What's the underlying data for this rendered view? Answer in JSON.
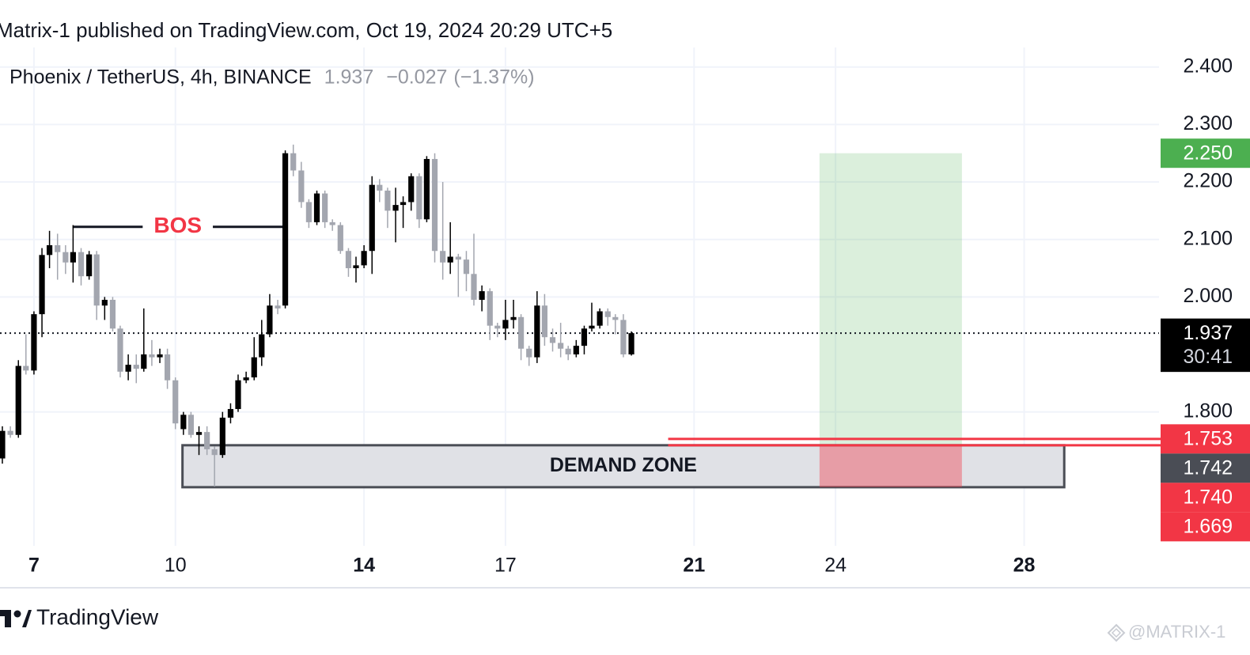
{
  "header": {
    "published": "Matrix-1 published on TradingView.com, Oct 19, 2024 20:29 UTC+5"
  },
  "chart_data": {
    "type": "candlestick",
    "title": "Phoenix / TetherUS, 4h, BINANCE",
    "last": "1.937",
    "change": "−0.027",
    "change_pct": "(−1.37%)",
    "up_color": "#000000",
    "down_color": "#a3a6af",
    "x": [
      6.33,
      6.5,
      6.67,
      6.83,
      7,
      7.17,
      7.33,
      7.5,
      7.67,
      7.83,
      8,
      8.17,
      8.33,
      8.5,
      8.67,
      8.83,
      9,
      9.17,
      9.33,
      9.5,
      9.67,
      9.83,
      10,
      10.17,
      10.33,
      10.5,
      10.67,
      10.83,
      11,
      11.17,
      11.33,
      11.5,
      11.67,
      11.83,
      12,
      12.17,
      12.33,
      12.5,
      12.67,
      12.83,
      13,
      13.17,
      13.33,
      13.5,
      13.67,
      13.83,
      14,
      14.17,
      14.33,
      14.5,
      14.67,
      14.83,
      15,
      15.17,
      15.33,
      15.5,
      15.67,
      15.83,
      16,
      16.17,
      16.33,
      16.5,
      16.67,
      16.83,
      17,
      17.17,
      17.33,
      17.5,
      17.67,
      17.83,
      18,
      18.17,
      18.33,
      18.5,
      18.67,
      18.83,
      19,
      19.17,
      19.33,
      19.5,
      19.67
    ],
    "open": [
      1.719,
      1.767,
      1.76,
      1.88,
      1.872,
      1.97,
      2.073,
      2.09,
      2.078,
      2.06,
      2.078,
      2.036,
      2.074,
      1.985,
      1.995,
      1.945,
      1.87,
      1.882,
      1.875,
      1.9,
      1.895,
      1.9,
      1.855,
      1.77,
      1.795,
      1.76,
      1.765,
      1.735,
      1.725,
      1.79,
      1.805,
      1.855,
      1.86,
      1.895,
      1.935,
      1.985,
      1.985,
      2.25,
      2.22,
      2.165,
      2.13,
      2.18,
      2.13,
      2.125,
      2.08,
      2.05,
      2.055,
      2.08,
      2.195,
      2.185,
      2.15,
      2.16,
      2.165,
      2.21,
      2.135,
      2.24,
      2.08,
      2.06,
      2.07,
      2.065,
      2.04,
      1.995,
      2.01,
      1.95,
      1.945,
      1.96,
      1.965,
      1.91,
      1.895,
      1.985,
      1.93,
      1.92,
      1.91,
      1.9,
      1.915,
      1.945,
      1.95,
      1.975,
      1.965,
      1.96,
      1.9
    ],
    "high": [
      1.775,
      1.775,
      1.89,
      1.935,
      1.975,
      2.085,
      2.115,
      2.11,
      2.09,
      2.125,
      2.085,
      2.08,
      2.08,
      2.0,
      2.0,
      1.95,
      1.9,
      1.9,
      1.98,
      1.925,
      1.91,
      1.91,
      1.86,
      1.8,
      1.8,
      1.775,
      1.775,
      1.74,
      1.8,
      1.815,
      1.865,
      1.87,
      1.93,
      1.96,
      2.005,
      1.995,
      2.255,
      2.265,
      2.235,
      2.17,
      2.185,
      2.185,
      2.135,
      2.13,
      2.085,
      2.07,
      2.09,
      2.21,
      2.205,
      2.19,
      2.19,
      2.175,
      2.215,
      2.215,
      2.245,
      2.25,
      2.2,
      2.13,
      2.075,
      2.08,
      2.11,
      2.02,
      2.015,
      1.955,
      1.995,
      1.995,
      1.97,
      1.915,
      2.01,
      2.005,
      1.945,
      1.955,
      1.915,
      1.925,
      1.95,
      1.99,
      1.98,
      1.98,
      1.97,
      1.97,
      1.94
    ],
    "low": [
      1.71,
      1.755,
      1.755,
      1.865,
      1.865,
      1.93,
      2.05,
      2.03,
      2.04,
      2.025,
      2.02,
      2.03,
      1.96,
      1.96,
      1.94,
      1.86,
      1.855,
      1.85,
      1.87,
      1.88,
      1.885,
      1.84,
      1.77,
      1.76,
      1.755,
      1.725,
      1.725,
      1.67,
      1.72,
      1.78,
      1.8,
      1.85,
      1.855,
      1.88,
      1.93,
      1.97,
      1.98,
      2.21,
      2.155,
      2.12,
      2.125,
      2.12,
      2.115,
      2.075,
      2.035,
      2.025,
      2.05,
      2.04,
      2.165,
      2.12,
      2.095,
      2.12,
      2.15,
      2.12,
      2.13,
      2.06,
      2.03,
      2.04,
      2.0,
      2.01,
      1.985,
      1.975,
      1.925,
      1.93,
      1.925,
      1.945,
      1.89,
      1.88,
      1.885,
      1.915,
      1.905,
      1.895,
      1.89,
      1.895,
      1.9,
      1.94,
      1.945,
      1.95,
      1.935,
      1.895,
      1.898
    ],
    "close": [
      1.767,
      1.76,
      1.88,
      1.872,
      1.97,
      2.073,
      2.09,
      2.078,
      2.06,
      2.078,
      2.036,
      2.074,
      1.985,
      1.995,
      1.945,
      1.87,
      1.882,
      1.875,
      1.9,
      1.895,
      1.9,
      1.855,
      1.78,
      1.795,
      1.76,
      1.765,
      1.735,
      1.725,
      1.79,
      1.805,
      1.855,
      1.86,
      1.895,
      1.935,
      1.985,
      1.98,
      2.25,
      2.22,
      2.165,
      2.13,
      2.18,
      2.13,
      2.125,
      2.08,
      2.05,
      2.055,
      2.08,
      2.195,
      2.185,
      2.15,
      2.16,
      2.165,
      2.21,
      2.135,
      2.24,
      2.08,
      2.06,
      2.07,
      2.065,
      2.04,
      1.995,
      2.01,
      1.95,
      1.945,
      1.96,
      1.965,
      1.91,
      1.895,
      1.985,
      1.93,
      1.92,
      1.91,
      1.9,
      1.915,
      1.945,
      1.95,
      1.975,
      1.965,
      1.96,
      1.9,
      1.937
    ],
    "xlim": [
      6.28,
      30.86
    ],
    "ylim": [
      1.567,
      2.434
    ],
    "xticks": [
      7,
      10,
      14,
      17,
      21,
      24,
      28
    ],
    "yticks": [
      {
        "value": 1.8,
        "label": "1.800"
      },
      {
        "value": 2.0,
        "label": "2.000"
      },
      {
        "value": 2.1,
        "label": "2.100"
      },
      {
        "value": 2.2,
        "label": "2.200"
      },
      {
        "value": 2.3,
        "label": "2.300"
      },
      {
        "value": 2.4,
        "label": "2.400"
      }
    ],
    "grid": true,
    "current_price": 1.937,
    "bos": {
      "label": "BOS",
      "price": 2.122,
      "x0": 7.82,
      "x1": 12.28,
      "color": "#f23645"
    },
    "demand_zone": {
      "label": "DEMAND ZONE",
      "x0": 10.15,
      "x1": 28.85,
      "low": 1.669,
      "high": 1.742
    },
    "position": {
      "x0": 23.66,
      "x1": 26.68,
      "target": 2.25,
      "entry": 1.74,
      "stop": 1.669
    },
    "levels": [
      {
        "price": 1.753,
        "x0": 20.45,
        "color": "#f23645"
      },
      {
        "price": 1.742,
        "x0": 20.45,
        "color": "#f23645"
      }
    ],
    "price_labels": [
      {
        "value": 2.25,
        "label": "2.250",
        "color": "#4caf50"
      },
      {
        "value": 1.937,
        "label": "1.937",
        "color": "#000000",
        "countdown": "30:41"
      },
      {
        "value": 1.753,
        "label": "1.753",
        "color": "#f23645"
      },
      {
        "value": 1.742,
        "label": "1.742",
        "color": "#4a4d55"
      },
      {
        "value": 1.74,
        "label": "1.740",
        "color": "#f23645"
      },
      {
        "value": 1.669,
        "label": "1.669",
        "color": "#f23645"
      }
    ]
  },
  "footer": {
    "brand": "TradingView",
    "watermark": "@MATRIX-1"
  }
}
